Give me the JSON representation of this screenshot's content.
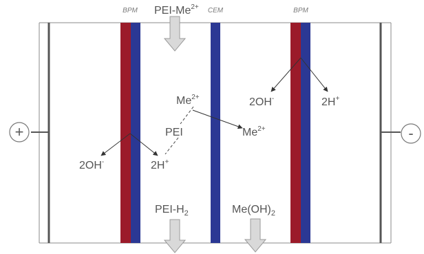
{
  "membranes": {
    "bpm_left": "BPM",
    "cem": "CEM",
    "bpm_right": "BPM"
  },
  "electrodes": {
    "anode": "+",
    "cathode": "-"
  },
  "feed": {
    "main": "PEI-Me",
    "sup": "2+"
  },
  "outputs": {
    "pei_h2_main": "PEI-H",
    "pei_h2_sub": "2",
    "meoh2_main": "Me(OH)",
    "meoh2_sub": "2"
  },
  "species": {
    "oh_left_main": "2OH",
    "oh_left_sup": "-",
    "h_left_main": "2H",
    "h_left_sup": "+",
    "me_top_main": "Me",
    "me_top_sup": "2+",
    "pei": "PEI",
    "me_right_main": "Me",
    "me_right_sup": "2+",
    "oh_right_main": "2OH",
    "oh_right_sup": "-",
    "h_right_main": "2H",
    "h_right_sup": "+"
  },
  "colors": {
    "bpm_red": "#9b1b2a",
    "bpm_blue": "#2b3894",
    "cem_blue": "#2b3894",
    "frame": "#555555",
    "flow_arrow_fill": "#d9d9d9",
    "flow_arrow_stroke": "#9a9a9a"
  }
}
